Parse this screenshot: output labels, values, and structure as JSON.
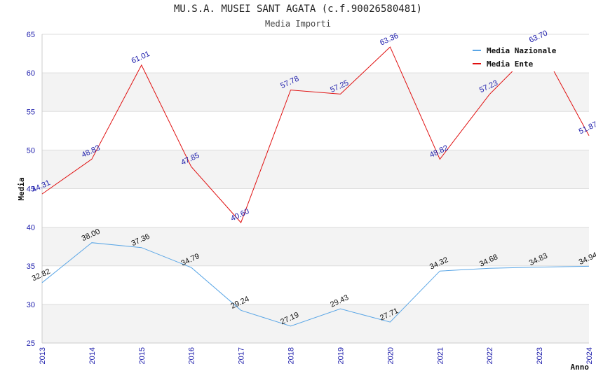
{
  "header": {
    "title": "MU.S.A. MUSEI SANT AGATA (c.f.90026580481)",
    "subtitle": "Media Importi"
  },
  "chart_data": {
    "type": "line",
    "title": "MU.S.A. MUSEI SANT AGATA (c.f.90026580481)",
    "subtitle": "Media Importi",
    "xlabel": "Anno",
    "ylabel": "Media",
    "x": [
      "2013",
      "2014",
      "2015",
      "2016",
      "2017",
      "2018",
      "2019",
      "2020",
      "2021",
      "2022",
      "2023",
      "2024"
    ],
    "ylim": [
      25,
      65
    ],
    "yticks": [
      "25",
      "30",
      "35",
      "40",
      "45",
      "50",
      "55",
      "60",
      "65"
    ],
    "grid": true,
    "legend_position": "top-right",
    "series": [
      {
        "name": "Media Nazionale",
        "color": "#5aa6e6",
        "label_color": "#111111",
        "values": [
          32.82,
          38.0,
          37.36,
          34.79,
          29.24,
          27.19,
          29.43,
          27.71,
          34.32,
          34.68,
          34.83,
          34.94
        ],
        "labels": [
          "32.82",
          "38.00",
          "37.36",
          "34.79",
          "29.24",
          "27.19",
          "29.43",
          "27.71",
          "34.32",
          "34.68",
          "34.83",
          "34.94"
        ]
      },
      {
        "name": "Media Ente",
        "color": "#e01010",
        "label_color": "#1b1bab",
        "values": [
          44.31,
          48.83,
          61.01,
          47.85,
          40.6,
          57.78,
          57.25,
          63.36,
          48.82,
          57.23,
          63.7,
          51.87
        ],
        "labels": [
          "44.31",
          "48.83",
          "61.01",
          "47.85",
          "40.60",
          "57.78",
          "57.25",
          "63.36",
          "48.82",
          "57.23",
          "63.70",
          "51.87"
        ]
      }
    ]
  }
}
